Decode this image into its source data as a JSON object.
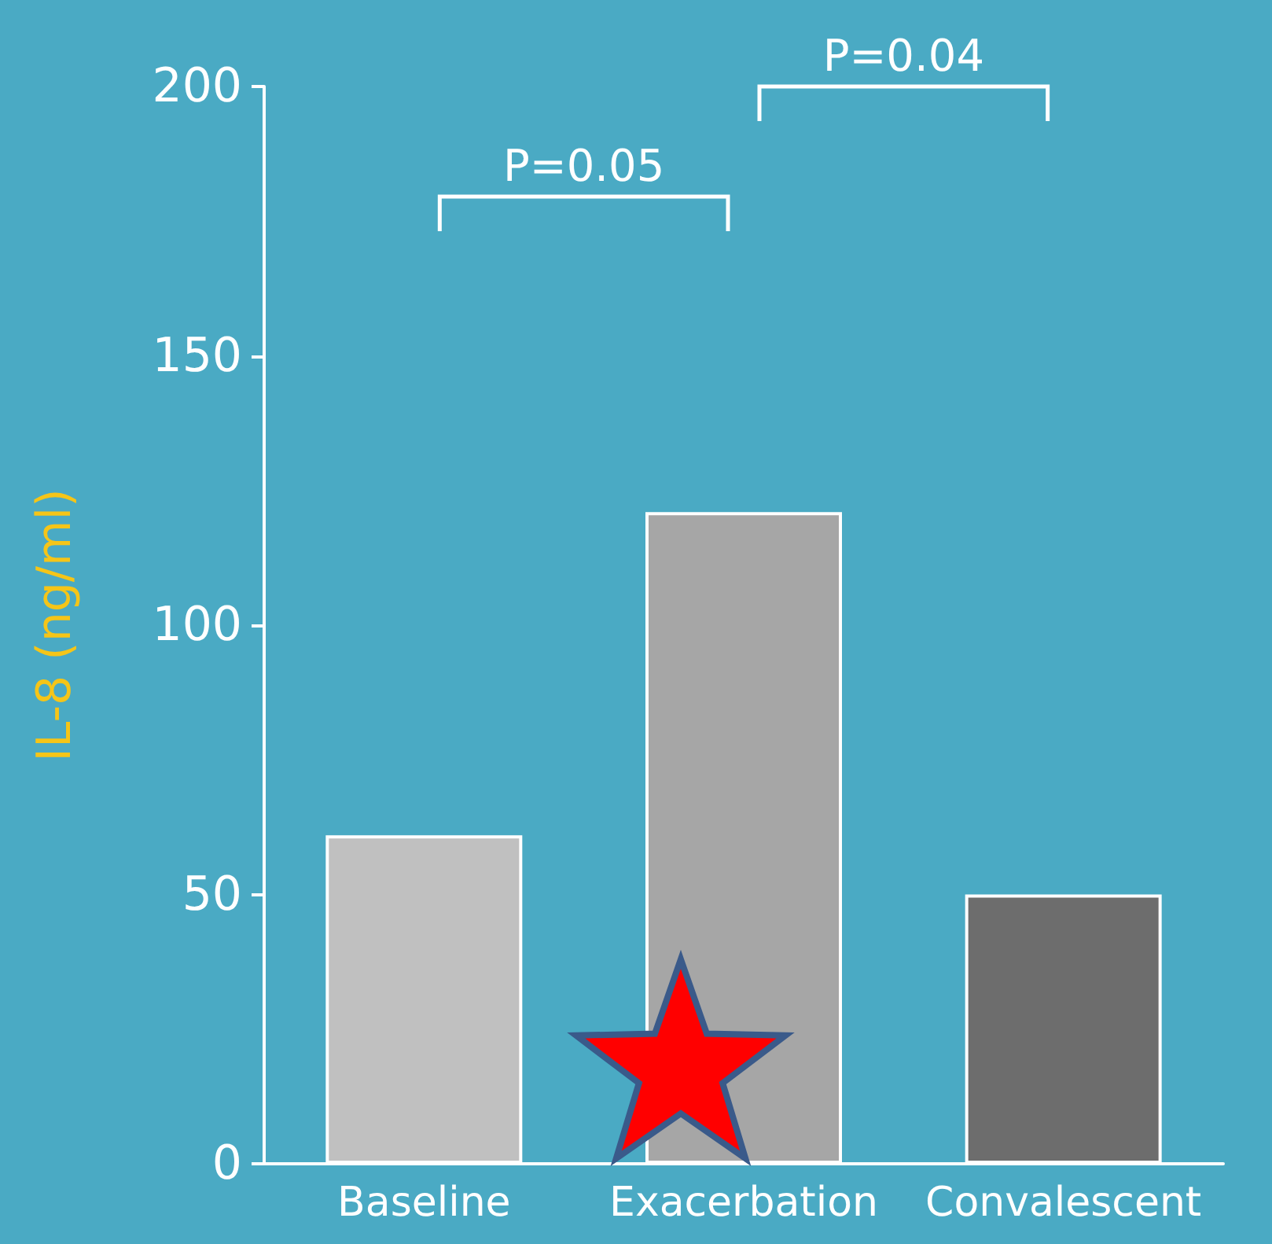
{
  "chart_data": {
    "type": "bar",
    "ylabel": "IL-8 (ng/ml)",
    "categories": [
      "Baseline",
      "Exacerbation",
      "Convalescent"
    ],
    "values": [
      61,
      121,
      50
    ],
    "colors": [
      "#c0c0c0",
      "#a6a6a6",
      "#6d6d6d"
    ],
    "ylim": [
      0,
      200
    ],
    "yticks": [
      0,
      50,
      100,
      150,
      200
    ],
    "grid": false,
    "annotations": [
      "P=0.05",
      "P=0.04"
    ]
  }
}
